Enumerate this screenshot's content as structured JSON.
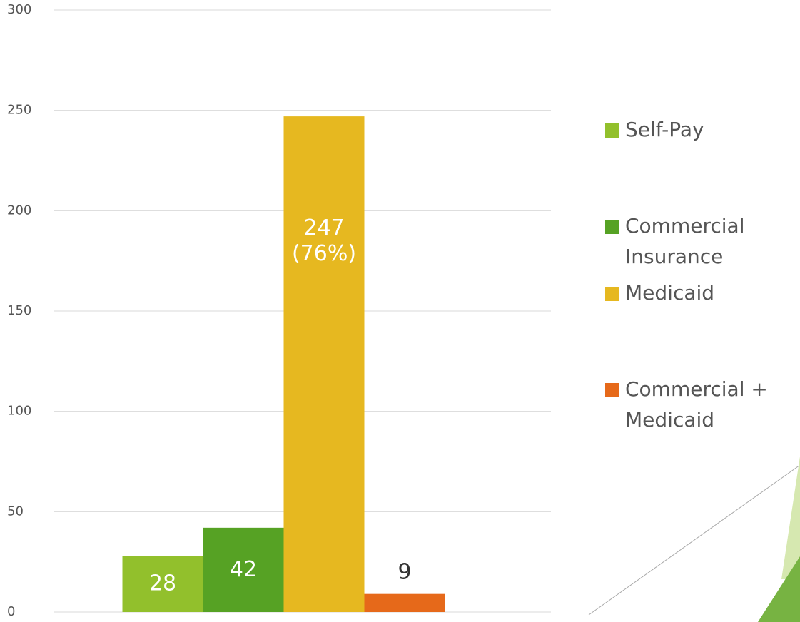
{
  "chart_data": {
    "type": "bar",
    "categories": [
      null
    ],
    "series": [
      {
        "name": "Self-Pay",
        "color": "#92c02c",
        "values": [
          28
        ],
        "value_labels": [
          "28"
        ]
      },
      {
        "name": "Commercial Insurance",
        "color": "#56a224",
        "values": [
          42
        ],
        "value_labels": [
          "42"
        ]
      },
      {
        "name": "Medicaid",
        "color": "#e6b820",
        "values": [
          247
        ],
        "value_labels": [
          "247 (76%)"
        ]
      },
      {
        "name": "Commercial + Medicaid",
        "color": "#e6691a",
        "values": [
          9
        ],
        "value_labels": [
          "9"
        ]
      }
    ],
    "ylim": [
      0,
      300
    ],
    "yticks": [
      0,
      50,
      100,
      150,
      200,
      250,
      300
    ],
    "grid": true,
    "legend": "right"
  }
}
